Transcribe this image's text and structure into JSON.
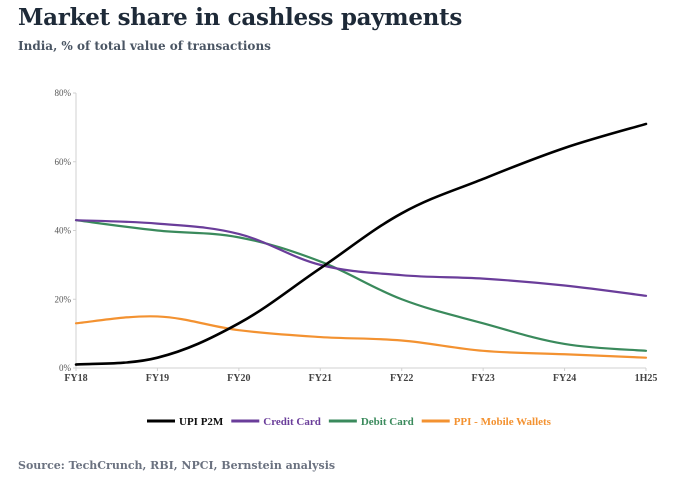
{
  "header": {
    "title": "Market share in cashless payments",
    "subtitle": "India, % of total value of transactions"
  },
  "footer": {
    "source": "Source: TechCrunch, RBI, NPCI, Bernstein analysis"
  },
  "chart_data": {
    "type": "line",
    "title": "Market share in cashless payments",
    "subtitle": "India, % of total value of transactions",
    "xlabel": "",
    "ylabel": "",
    "x": [
      "FY18",
      "FY19",
      "FY20",
      "FY21",
      "FY22",
      "FY23",
      "FY24",
      "1H25"
    ],
    "ylim": [
      0,
      80
    ],
    "yticks": [
      0,
      20,
      40,
      60,
      80
    ],
    "ytick_labels": [
      "0%",
      "20%",
      "40%",
      "60%",
      "80%"
    ],
    "grid": false,
    "legend_position": "bottom-center",
    "series": [
      {
        "name": "UPI P2M",
        "color": "#000000",
        "values": [
          1,
          3,
          13,
          29,
          45,
          55,
          64,
          71
        ]
      },
      {
        "name": "Credit Card",
        "color": "#6a3d9a",
        "values": [
          43,
          42,
          39,
          30,
          27,
          26,
          24,
          21
        ]
      },
      {
        "name": "Debit Card",
        "color": "#3a8a5c",
        "values": [
          43,
          40,
          38,
          31,
          20,
          13,
          7,
          5
        ]
      },
      {
        "name": "PPI - Mobile Wallets",
        "color": "#f39231",
        "values": [
          13,
          15,
          11,
          9,
          8,
          5,
          4,
          3
        ]
      }
    ]
  }
}
